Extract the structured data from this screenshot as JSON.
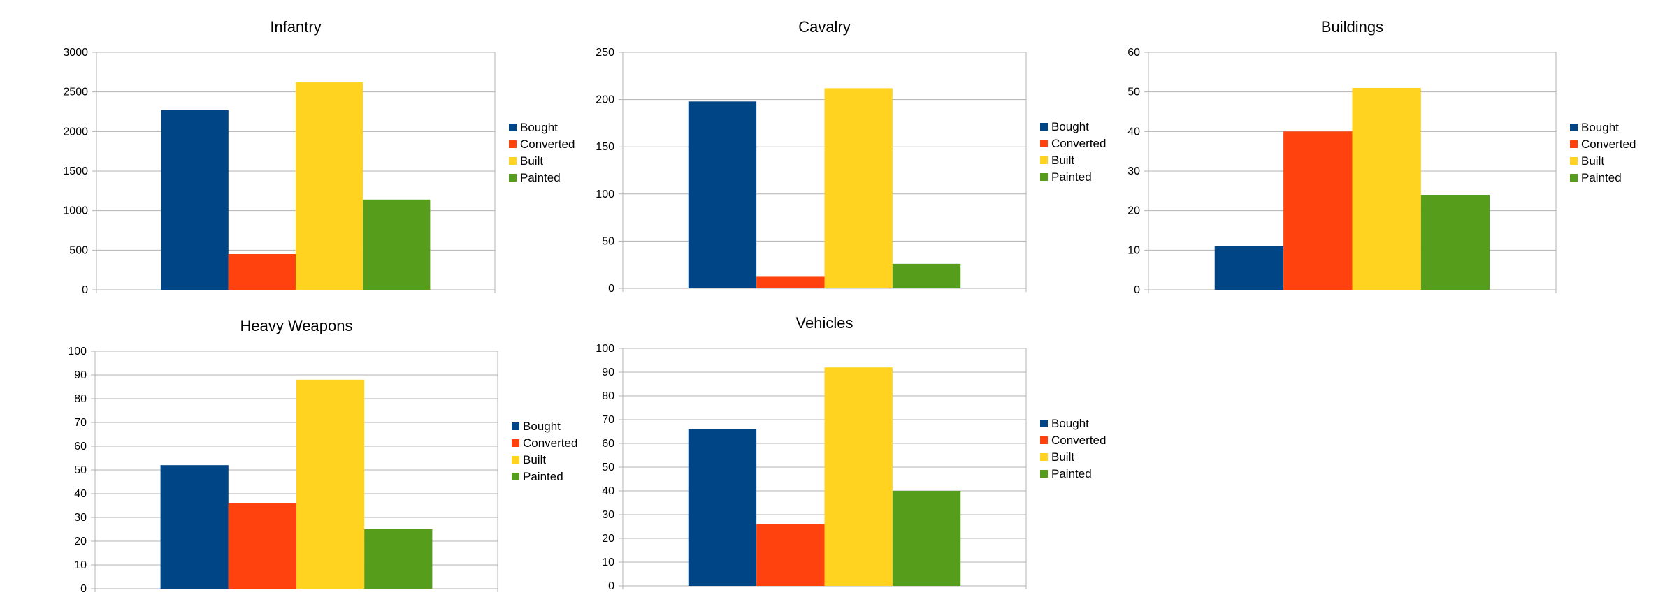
{
  "colors": {
    "bought": "#004586",
    "converted": "#ff420e",
    "built": "#ffd320",
    "painted": "#579d1c",
    "gridline": "#b3b3b3"
  },
  "chart_data": [
    {
      "type": "bar",
      "title": "Infantry",
      "series": [
        {
          "name": "Bought",
          "values": [
            2270
          ]
        },
        {
          "name": "Converted",
          "values": [
            450
          ]
        },
        {
          "name": "Built",
          "values": [
            2620
          ]
        },
        {
          "name": "Painted",
          "values": [
            1140
          ]
        }
      ],
      "ylim": [
        0,
        3000
      ],
      "yticks": [
        "0",
        "500",
        "1000",
        "1500",
        "2000",
        "2500",
        "3000"
      ],
      "grid": true,
      "legend": "right"
    },
    {
      "type": "bar",
      "title": "Cavalry",
      "series": [
        {
          "name": "Bought",
          "values": [
            198
          ]
        },
        {
          "name": "Converted",
          "values": [
            13
          ]
        },
        {
          "name": "Built",
          "values": [
            212
          ]
        },
        {
          "name": "Painted",
          "values": [
            26
          ]
        }
      ],
      "ylim": [
        0,
        250
      ],
      "yticks": [
        "0",
        "50",
        "100",
        "150",
        "200",
        "250"
      ],
      "grid": true,
      "legend": "right"
    },
    {
      "type": "bar",
      "title": "Buildings",
      "series": [
        {
          "name": "Bought",
          "values": [
            11
          ]
        },
        {
          "name": "Converted",
          "values": [
            40
          ]
        },
        {
          "name": "Built",
          "values": [
            51
          ]
        },
        {
          "name": "Painted",
          "values": [
            24
          ]
        }
      ],
      "ylim": [
        0,
        60
      ],
      "yticks": [
        "0",
        "10",
        "20",
        "30",
        "40",
        "50",
        "60"
      ],
      "grid": true,
      "legend": "right"
    },
    {
      "type": "bar",
      "title": "Heavy Weapons",
      "series": [
        {
          "name": "Bought",
          "values": [
            52
          ]
        },
        {
          "name": "Converted",
          "values": [
            36
          ]
        },
        {
          "name": "Built",
          "values": [
            88
          ]
        },
        {
          "name": "Painted",
          "values": [
            25
          ]
        }
      ],
      "ylim": [
        0,
        100
      ],
      "yticks": [
        "0",
        "10",
        "20",
        "30",
        "40",
        "50",
        "60",
        "70",
        "80",
        "90",
        "100"
      ],
      "grid": true,
      "legend": "right"
    },
    {
      "type": "bar",
      "title": "Vehicles",
      "series": [
        {
          "name": "Bought",
          "values": [
            66
          ]
        },
        {
          "name": "Converted",
          "values": [
            26
          ]
        },
        {
          "name": "Built",
          "values": [
            92
          ]
        },
        {
          "name": "Painted",
          "values": [
            40
          ]
        }
      ],
      "ylim": [
        0,
        100
      ],
      "yticks": [
        "0",
        "10",
        "20",
        "30",
        "40",
        "50",
        "60",
        "70",
        "80",
        "90",
        "100"
      ],
      "grid": true,
      "legend": "right"
    }
  ]
}
